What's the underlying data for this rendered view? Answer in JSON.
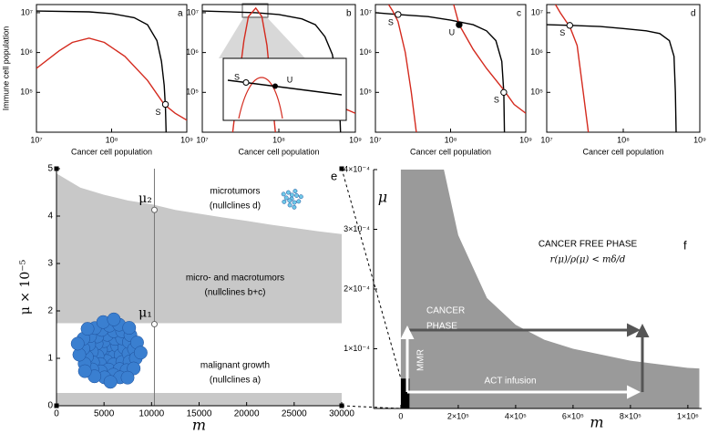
{
  "chart_data": [
    {
      "type": "line",
      "label": "a",
      "xlabel": "Cancer cell population",
      "ylabel": "Immune cell population",
      "xscale": "log",
      "yscale": "log",
      "xlim": [
        10000000,
        1000000000
      ],
      "ylim": [
        10000,
        16000000
      ],
      "xticks": [
        {
          "value": 10000000,
          "label": "10⁷"
        },
        {
          "value": 100000000,
          "label": "10⁸"
        },
        {
          "value": 1000000000,
          "label": "10⁹"
        }
      ],
      "yticks": [
        {
          "value": 100000,
          "label": "10⁵"
        },
        {
          "value": 1000000,
          "label": "10⁶"
        },
        {
          "value": 10000000,
          "label": "10⁷"
        }
      ],
      "series": [
        {
          "color": "#000000",
          "x": [
            10000000,
            50000000,
            100000000,
            200000000,
            300000000,
            400000000,
            460000000,
            500000000,
            520000000,
            530000000
          ],
          "values": [
            11000000,
            10500000,
            9500000,
            7500000,
            5000000,
            2000000,
            600000,
            150000,
            40000,
            10000
          ]
        },
        {
          "color": "#d42a1e",
          "x": [
            10000000,
            20000000,
            30000000,
            50000000,
            80000000,
            150000000,
            300000000,
            500000000,
            700000000,
            1000000000
          ],
          "values": [
            400000,
            1100000,
            1800000,
            2300000,
            1800000,
            800000,
            200000,
            50000,
            30000,
            20000
          ]
        }
      ],
      "points": [
        {
          "label": "S",
          "x": 520000000,
          "y": 50000,
          "filled": false
        }
      ]
    },
    {
      "type": "line",
      "label": "b",
      "xlabel": "Cancer cell population",
      "xscale": "log",
      "yscale": "log",
      "xlim": [
        10000000,
        1000000000
      ],
      "ylim": [
        10000,
        16000000
      ],
      "xticks": [
        {
          "value": 10000000,
          "label": "10⁷"
        },
        {
          "value": 100000000,
          "label": "10⁸"
        },
        {
          "value": 1000000000,
          "label": "10⁹"
        }
      ],
      "yticks": [
        {
          "value": 100000,
          "label": "10⁵"
        },
        {
          "value": 1000000,
          "label": "10⁶"
        },
        {
          "value": 10000000,
          "label": "10⁷"
        }
      ],
      "series": [
        {
          "color": "#000000",
          "x": [
            10000000,
            50000000,
            100000000,
            200000000,
            300000000,
            400000000,
            500000000,
            580000000,
            620000000,
            640000000
          ],
          "values": [
            11000000,
            10000000,
            9000000,
            7000000,
            5000000,
            2500000,
            900000,
            200000,
            50000,
            10000
          ]
        },
        {
          "color": "#d42a1e",
          "x": [
            25000000,
            30000000,
            35000000,
            40000000,
            50000000,
            60000000,
            70000000,
            90000000,
            null,
            200000000,
            300000000,
            500000000,
            700000000,
            1000000000
          ],
          "values": [
            10000,
            200000,
            2000000,
            8000000,
            13000000,
            8000000,
            1500000,
            10000,
            null,
            200000,
            120000,
            60000,
            40000,
            30000
          ]
        }
      ],
      "points": [
        {
          "label": "S",
          "x": 600000000,
          "y": 55000,
          "filled": false
        }
      ],
      "inset": {
        "labels": [
          "S",
          "U"
        ]
      }
    },
    {
      "type": "line",
      "label": "c",
      "xlabel": "Cancer cell population",
      "xscale": "log",
      "yscale": "log",
      "xlim": [
        10000000,
        1000000000
      ],
      "ylim": [
        10000,
        16000000
      ],
      "xticks": [
        {
          "value": 10000000,
          "label": "10⁷"
        },
        {
          "value": 100000000,
          "label": "10⁸"
        },
        {
          "value": 1000000000,
          "label": "10⁹"
        }
      ],
      "yticks": [
        {
          "value": 100000,
          "label": "10⁵"
        },
        {
          "value": 1000000,
          "label": "10⁶"
        },
        {
          "value": 10000000,
          "label": "10⁷"
        }
      ],
      "series": [
        {
          "color": "#000000",
          "x": [
            10000000,
            20000000,
            50000000,
            100000000,
            200000000,
            300000000,
            400000000,
            480000000,
            510000000,
            520000000
          ],
          "values": [
            10000000,
            9000000,
            8000000,
            6500000,
            5000000,
            3500000,
            2000000,
            600000,
            100000,
            10000
          ]
        },
        {
          "color": "#d42a1e",
          "x": [
            15000000,
            17000000,
            20000000,
            25000000,
            30000000,
            35000000,
            null,
            110000000,
            130000000,
            200000000,
            300000000,
            500000000,
            700000000,
            1000000000
          ],
          "values": [
            16000000,
            11000000,
            6000000,
            1000000,
            100000,
            10000,
            null,
            16000000,
            5000000,
            1200000,
            400000,
            120000,
            50000,
            30000
          ]
        }
      ],
      "points": [
        {
          "label": "S",
          "x": 20000000,
          "y": 9000000,
          "filled": false
        },
        {
          "label": "U",
          "x": 130000000,
          "y": 5000000,
          "filled": true
        },
        {
          "label": "S",
          "x": 510000000,
          "y": 100000,
          "filled": false
        }
      ]
    },
    {
      "type": "line",
      "label": "d",
      "xlabel": "Cancer cell population",
      "xscale": "log",
      "yscale": "log",
      "xlim": [
        10000000,
        1000000000
      ],
      "ylim": [
        10000,
        16000000
      ],
      "xticks": [
        {
          "value": 10000000,
          "label": "10⁷"
        },
        {
          "value": 100000000,
          "label": "10⁸"
        },
        {
          "value": 1000000000,
          "label": "10⁹"
        }
      ],
      "yticks": [
        {
          "value": 100000,
          "label": "10⁵"
        },
        {
          "value": 1000000,
          "label": "10⁶"
        },
        {
          "value": 10000000,
          "label": "10⁷"
        }
      ],
      "series": [
        {
          "color": "#000000",
          "x": [
            10000000,
            20000000,
            50000000,
            100000000,
            200000000,
            300000000,
            400000000,
            460000000,
            480000000,
            490000000
          ],
          "values": [
            5000000,
            4800000,
            4500000,
            4000000,
            3500000,
            3000000,
            2000000,
            800000,
            100000,
            10000
          ]
        },
        {
          "color": "#d42a1e",
          "x": [
            13000000,
            15000000,
            18000000,
            20000000,
            25000000,
            30000000,
            35000000
          ],
          "values": [
            16000000,
            10000000,
            6000000,
            4500000,
            1500000,
            100000,
            10000
          ]
        }
      ],
      "points": [
        {
          "label": "S",
          "x": 20000000,
          "y": 4800000,
          "filled": false
        }
      ]
    },
    {
      "type": "area",
      "label": "e",
      "xlabel": "m",
      "ylabel": "μ × 10⁻⁵",
      "color": "#c8c8c8",
      "xlim": [
        0,
        30000
      ],
      "ylim": [
        0,
        5
      ],
      "xticks": [
        0,
        5000,
        10000,
        15000,
        20000,
        25000,
        30000
      ],
      "yticks": [
        0,
        1,
        2,
        3,
        4,
        5
      ],
      "x": [
        0,
        2500,
        5000,
        7500,
        10000,
        12500,
        15000,
        17500,
        20000,
        22500,
        25000,
        27500,
        30000
      ],
      "series": [
        {
          "values": [
            4.9,
            4.6,
            4.45,
            4.33,
            4.25,
            4.13,
            4.05,
            3.97,
            3.9,
            3.82,
            3.75,
            3.68,
            3.62
          ]
        },
        {
          "values": [
            1.74,
            1.74,
            1.74,
            1.74,
            1.74,
            1.74,
            1.74,
            1.74,
            1.74,
            1.74,
            1.74,
            1.74,
            1.74
          ]
        },
        {
          "values": [
            0.27,
            0.27,
            0.27,
            0.27,
            0.27,
            0.27,
            0.27,
            0.27,
            0.27,
            0.27,
            0.27,
            0.27,
            0.27
          ]
        }
      ],
      "vline": 10300,
      "points": [
        {
          "label": "μ₂",
          "x": 10300,
          "y": 4.13
        },
        {
          "label": "μ₁",
          "x": 10300,
          "y": 1.72
        }
      ],
      "annotations": [
        "microtumors",
        "(nullclines d)",
        "micro- and macrotumors",
        "(nullclines b+c)",
        "malignant growth",
        "(nullclines a)"
      ]
    },
    {
      "type": "area",
      "label": "f",
      "xlabel": "m",
      "ylabel": "μ",
      "color": "#9a9a9a",
      "xlim": [
        -95000,
        1048000
      ],
      "ylim": [
        0,
        0.0004
      ],
      "xticks": [
        0,
        {
          "value": 200000,
          "label": "2×10⁵"
        },
        {
          "value": 400000,
          "label": "4×10⁵"
        },
        {
          "value": 600000,
          "label": "6×10⁵"
        },
        {
          "value": 800000,
          "label": "8×10⁵"
        },
        {
          "value": 1000000,
          "label": "1×10⁶"
        }
      ],
      "yticks": [
        {
          "value": 0.0001,
          "label": "1×10⁻⁴"
        },
        {
          "value": 0.0002,
          "label": "2×10⁻⁴"
        },
        {
          "value": 0.0003,
          "label": "3×10⁻⁴"
        },
        {
          "value": 0.0004,
          "label": "4×10⁻⁴"
        }
      ],
      "x": [
        150000,
        200000,
        300000,
        400000,
        500000,
        600000,
        800000,
        1000000,
        1040000
      ],
      "values": [
        0.0004,
        0.00029,
        0.000185,
        0.00014,
        0.000115,
        0.0001,
        8e-05,
        6.8e-05,
        6.7e-05
      ],
      "region": {
        "x": [
          0,
          30000
        ],
        "y": [
          0,
          5e-05
        ]
      },
      "annotations": [
        "CANCER",
        "PHASE",
        "CANCER FREE PHASE",
        "r(μ)/ρ(μ) < mδ/d",
        "MMR",
        "ACT infusion"
      ]
    }
  ]
}
